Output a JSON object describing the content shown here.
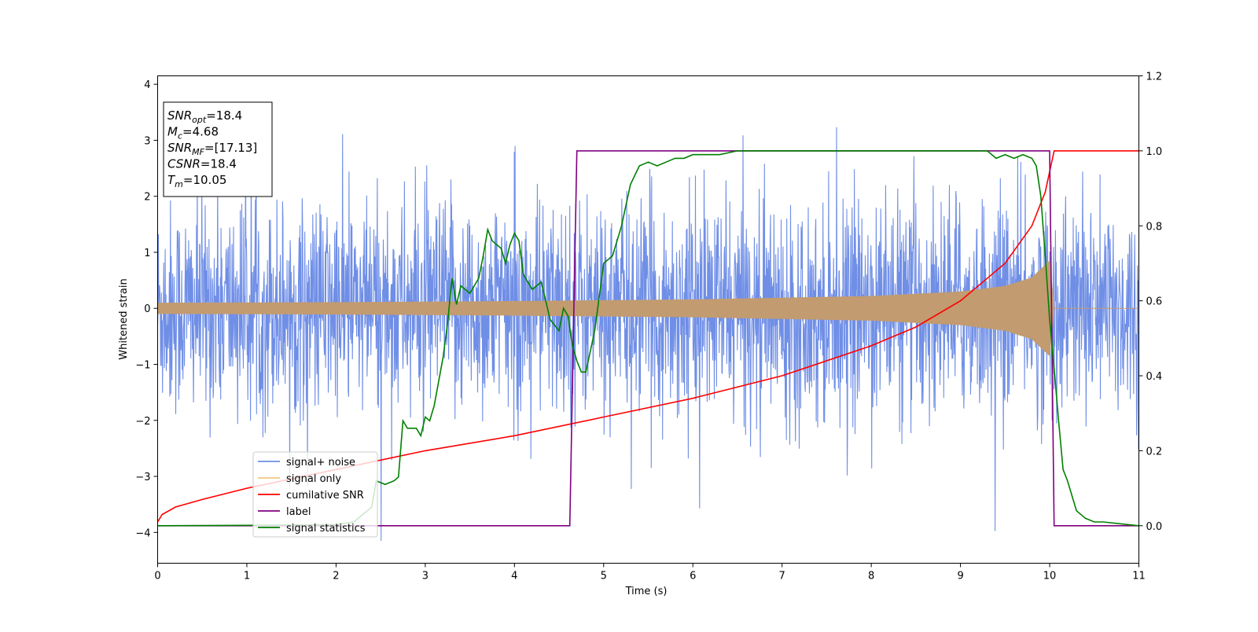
{
  "chart_data": {
    "type": "line",
    "xlabel": "Time (s)",
    "ylabel": "Whitened strain",
    "xlim": [
      0,
      11
    ],
    "ylim": [
      -4.55,
      4.15
    ],
    "y2lim": [
      -0.1,
      1.2
    ],
    "grid": false,
    "x_ticks": [
      0,
      1,
      2,
      3,
      4,
      5,
      6,
      7,
      8,
      9,
      10,
      11
    ],
    "y_ticks": [
      -4,
      -3,
      -2,
      -1,
      0,
      1,
      2,
      3,
      4
    ],
    "y2_ticks": [
      0.0,
      0.2,
      0.4,
      0.6,
      0.8,
      1.0,
      1.2
    ],
    "annotation": {
      "lines": [
        {
          "main": "SNR",
          "sub": "opt",
          "rest": "=18.4",
          "italic": true
        },
        {
          "main": "M",
          "sub": "c",
          "rest": "=4.68",
          "italic": true
        },
        {
          "main": "SNR",
          "sub": "MF",
          "rest": "=[17.13]",
          "italic": true
        },
        {
          "main": "CSNR",
          "sub": "",
          "rest": "=18.4",
          "italic": true
        },
        {
          "main": "T",
          "sub": "m",
          "rest": "=10.05",
          "italic": true
        }
      ]
    },
    "legend": {
      "placement": "lower-left",
      "entries": [
        {
          "label": "signal+ noise",
          "color": "#6f8ee6"
        },
        {
          "label": "signal only",
          "color": "#f5c77e"
        },
        {
          "label": "cumilative SNR",
          "color": "#ff0000"
        },
        {
          "label": "label",
          "color": "#800080"
        },
        {
          "label": "signal statistics",
          "color": "#008000"
        }
      ]
    },
    "series": [
      {
        "name": "signal+ noise",
        "axis": "left",
        "color": "#6f8ee6",
        "description_values": {
          "x_range": [
            0,
            11
          ],
          "approx_range": [
            -4.1,
            3.5
          ],
          "signal_end": 10.05
        }
      },
      {
        "name": "signal only",
        "axis": "left",
        "color": "#c29b70",
        "envelope": {
          "x": [
            0,
            2,
            4,
            6,
            8,
            9,
            9.5,
            9.8,
            10.0,
            10.05,
            11
          ],
          "amp": [
            0.1,
            0.11,
            0.13,
            0.16,
            0.22,
            0.3,
            0.4,
            0.55,
            0.85,
            0.0,
            0.0
          ]
        }
      },
      {
        "name": "cumilative SNR",
        "axis": "right",
        "color": "#ff0000",
        "x": [
          0,
          0.05,
          0.2,
          0.5,
          1,
          2,
          3,
          4,
          5,
          6,
          7,
          8,
          8.5,
          9,
          9.5,
          9.8,
          9.95,
          10.05,
          11
        ],
        "y": [
          0.01,
          0.03,
          0.05,
          0.07,
          0.1,
          0.15,
          0.2,
          0.24,
          0.29,
          0.34,
          0.4,
          0.48,
          0.53,
          0.6,
          0.7,
          0.8,
          0.89,
          1.0,
          1.0
        ]
      },
      {
        "name": "label",
        "axis": "right",
        "color": "#800080",
        "x": [
          0,
          4.62,
          4.7,
          10.0,
          10.05,
          11
        ],
        "y": [
          0,
          0,
          1,
          1,
          0,
          0
        ]
      },
      {
        "name": "signal statistics",
        "axis": "right",
        "color": "#008000",
        "x": [
          0,
          1,
          2,
          2.2,
          2.4,
          2.45,
          2.55,
          2.6,
          2.65,
          2.7,
          2.75,
          2.8,
          2.9,
          2.95,
          3.0,
          3.05,
          3.1,
          3.2,
          3.25,
          3.3,
          3.35,
          3.4,
          3.5,
          3.6,
          3.65,
          3.7,
          3.75,
          3.8,
          3.85,
          3.9,
          3.95,
          4.0,
          4.05,
          4.1,
          4.2,
          4.3,
          4.4,
          4.5,
          4.55,
          4.6,
          4.65,
          4.7,
          4.75,
          4.8,
          4.9,
          5.0,
          5.1,
          5.2,
          5.3,
          5.4,
          5.5,
          5.6,
          5.7,
          5.8,
          5.9,
          6.0,
          6.3,
          6.5,
          7.0,
          7.5,
          8.0,
          8.5,
          9.0,
          9.3,
          9.4,
          9.5,
          9.6,
          9.7,
          9.8,
          9.85,
          9.9,
          9.95,
          10.0,
          10.05,
          10.1,
          10.15,
          10.2,
          10.3,
          10.4,
          10.5,
          10.6,
          10.8,
          11.0
        ],
        "y": [
          0,
          0.001,
          0.003,
          0.01,
          0.05,
          0.12,
          0.11,
          0.115,
          0.12,
          0.13,
          0.28,
          0.26,
          0.26,
          0.24,
          0.29,
          0.28,
          0.32,
          0.45,
          0.54,
          0.66,
          0.59,
          0.64,
          0.62,
          0.66,
          0.72,
          0.79,
          0.76,
          0.75,
          0.74,
          0.7,
          0.75,
          0.78,
          0.76,
          0.67,
          0.63,
          0.65,
          0.55,
          0.52,
          0.58,
          0.56,
          0.48,
          0.44,
          0.41,
          0.41,
          0.52,
          0.7,
          0.72,
          0.8,
          0.91,
          0.96,
          0.97,
          0.96,
          0.97,
          0.98,
          0.98,
          0.99,
          0.99,
          1.0,
          1.0,
          1.0,
          1.0,
          1.0,
          1.0,
          1.0,
          0.98,
          0.99,
          0.98,
          0.99,
          0.98,
          0.96,
          0.88,
          0.72,
          0.55,
          0.42,
          0.28,
          0.15,
          0.12,
          0.04,
          0.02,
          0.01,
          0.01,
          0.005,
          0.0
        ]
      }
    ]
  }
}
